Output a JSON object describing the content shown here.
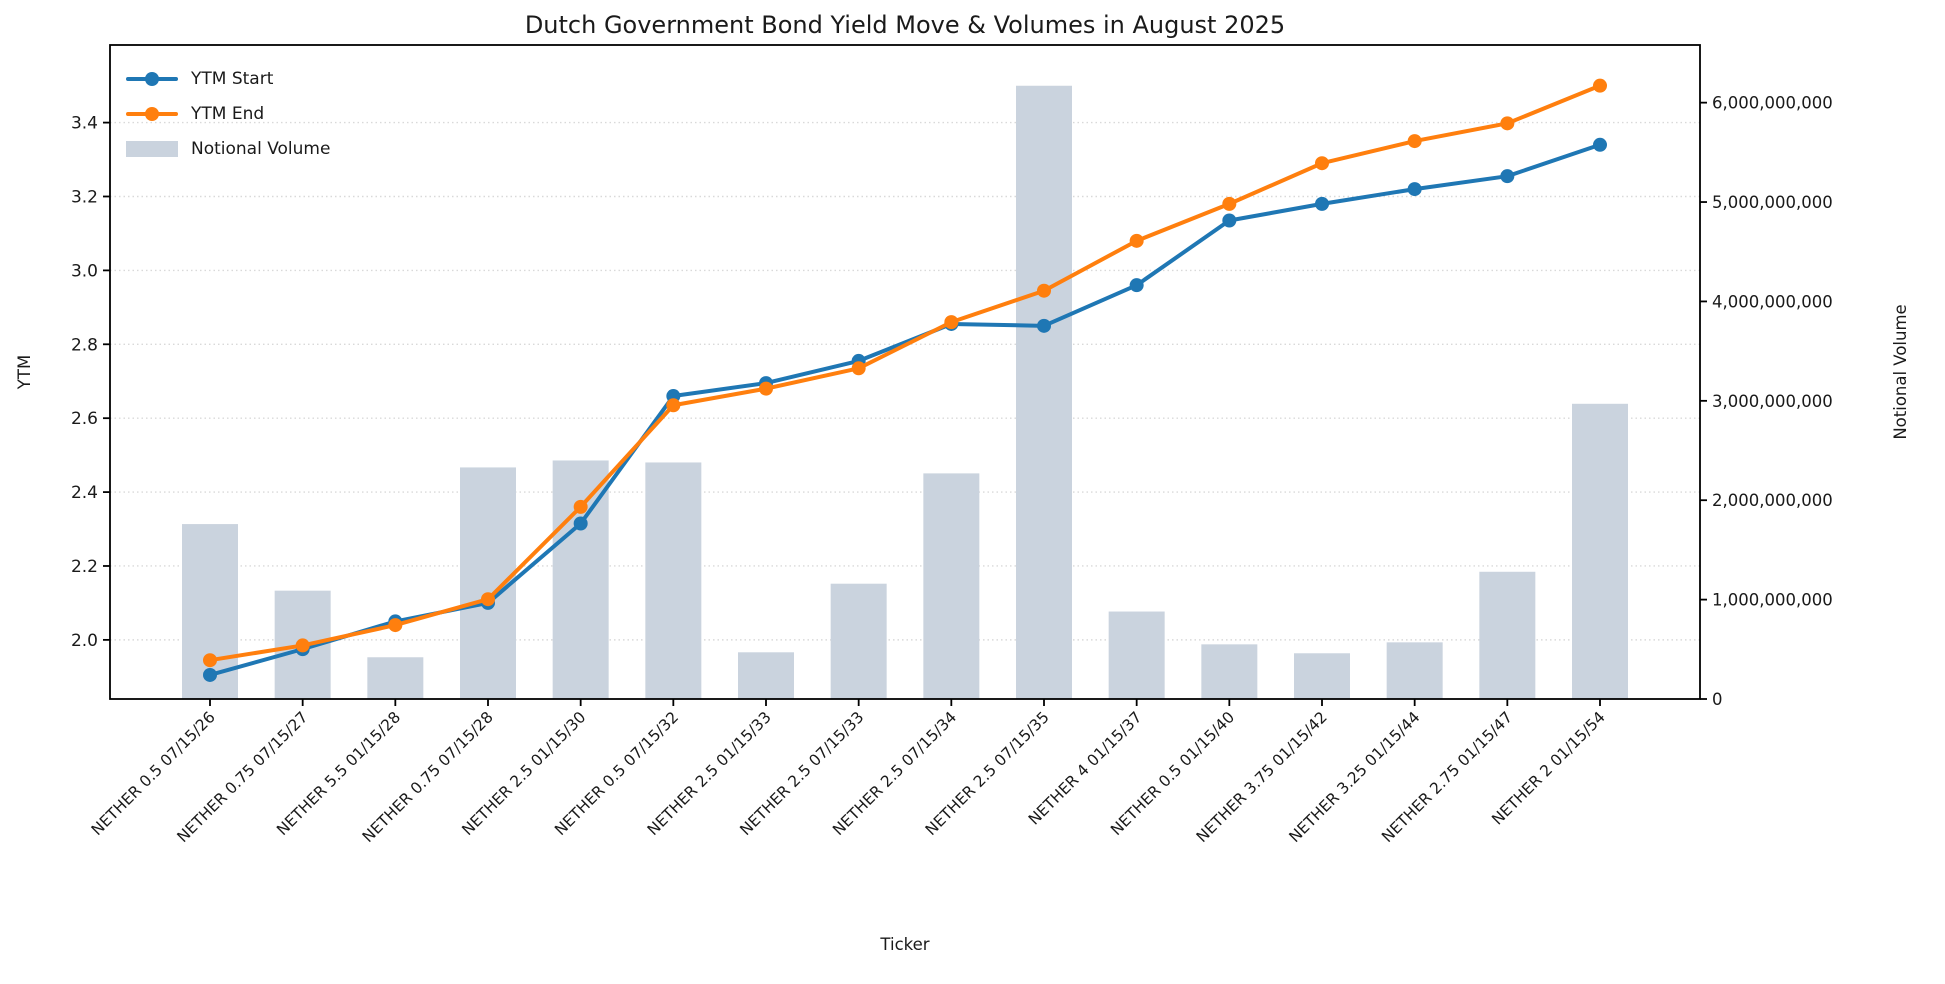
{
  "chart_data": {
    "type": "combo-line-bar",
    "title": "Dutch Government Bond Yield Move & Volumes in August 2025",
    "xlabel": "Ticker",
    "ylabel_left": "YTM",
    "ylabel_right": "Notional Volume",
    "legend_position": "upper-left",
    "grid": "horizontal-dotted",
    "categories": [
      "NETHER 0.5 07/15/26",
      "NETHER 0.75 07/15/27",
      "NETHER 5.5 01/15/28",
      "NETHER 0.75 07/15/28",
      "NETHER 2.5 01/15/30",
      "NETHER 0.5 07/15/32",
      "NETHER 2.5 01/15/33",
      "NETHER 2.5 07/15/33",
      "NETHER 2.5 07/15/34",
      "NETHER 2.5 07/15/35",
      "NETHER 4 01/15/37",
      "NETHER 0.5 01/15/40",
      "NETHER 3.75 01/15/42",
      "NETHER 3.25 01/15/44",
      "NETHER 2.75 01/15/47",
      "NETHER 2 01/15/54"
    ],
    "series": [
      {
        "name": "YTM Start",
        "type": "line",
        "axis": "left",
        "color": "#1f77b4",
        "values": [
          1.905,
          1.975,
          2.05,
          2.1,
          2.315,
          2.66,
          2.695,
          2.755,
          2.855,
          2.85,
          2.96,
          3.135,
          3.18,
          3.22,
          3.255,
          3.34
        ]
      },
      {
        "name": "YTM End",
        "type": "line",
        "axis": "left",
        "color": "#ff7f0e",
        "values": [
          1.945,
          1.985,
          2.04,
          2.11,
          2.36,
          2.635,
          2.68,
          2.735,
          2.86,
          2.945,
          3.08,
          3.18,
          3.29,
          3.35,
          3.398,
          3.5
        ]
      }
    ],
    "bar_series": {
      "name": "Notional Volume",
      "type": "bar",
      "axis": "right",
      "color": "#cad3de",
      "values": [
        1760000000,
        1090000000,
        420000000,
        2330000000,
        2400000000,
        2380000000,
        470000000,
        1160000000,
        2270000000,
        6170000000,
        880000000,
        550000000,
        460000000,
        570000000,
        1280000000,
        2970000000
      ]
    },
    "left_axis": {
      "min": 1.84,
      "max": 3.61,
      "ticks": [
        2.0,
        2.2,
        2.4,
        2.6,
        2.8,
        3.0,
        3.2,
        3.4
      ],
      "tick_labels": [
        "2.0",
        "2.2",
        "2.4",
        "2.6",
        "2.8",
        "3.0",
        "3.2",
        "3.4"
      ]
    },
    "right_axis": {
      "min": 0,
      "max": 6580000000,
      "ticks": [
        0,
        1000000000,
        2000000000,
        3000000000,
        4000000000,
        5000000000,
        6000000000
      ],
      "tick_labels": [
        "0",
        "1,000,000,000",
        "2,000,000,000",
        "3,000,000,000",
        "4,000,000,000",
        "5,000,000,000",
        "6,000,000,000"
      ]
    }
  }
}
